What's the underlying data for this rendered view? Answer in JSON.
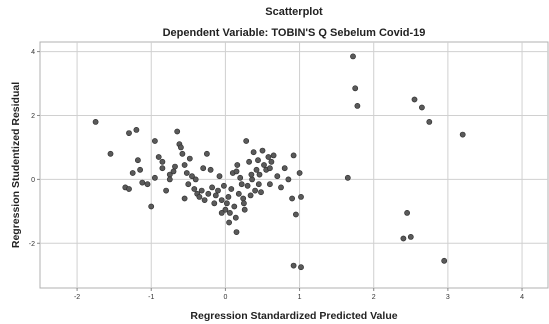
{
  "chart_data": {
    "type": "scatter",
    "title": "Scatterplot",
    "subtitle": "Dependent Variable: TOBIN'S Q Sebelum Covid-19",
    "xlabel": "Regression Standardized Predicted Value",
    "ylabel": "Regression Studentized Residual",
    "xlim": [
      -2.5,
      4.35
    ],
    "ylim": [
      -3.4,
      4.3
    ],
    "xticks": [
      -2,
      -1,
      0,
      1,
      2,
      3,
      4
    ],
    "yticks": [
      -2,
      0,
      2,
      4
    ],
    "grid": true,
    "point_color": "#5a5a5a",
    "points": [
      [
        -1.75,
        1.8
      ],
      [
        -1.55,
        0.8
      ],
      [
        -1.35,
        -0.25
      ],
      [
        -1.3,
        1.45
      ],
      [
        -1.25,
        0.2
      ],
      [
        -1.2,
        1.55
      ],
      [
        -1.18,
        0.6
      ],
      [
        -1.15,
        0.3
      ],
      [
        -1.12,
        -0.1
      ],
      [
        -1.05,
        -0.15
      ],
      [
        -0.95,
        1.2
      ],
      [
        -0.95,
        0.05
      ],
      [
        -0.9,
        0.7
      ],
      [
        -0.85,
        0.55
      ],
      [
        -0.8,
        -0.35
      ],
      [
        -0.75,
        0.15
      ],
      [
        -0.7,
        0.25
      ],
      [
        -0.68,
        0.4
      ],
      [
        -0.65,
        1.5
      ],
      [
        -0.62,
        1.1
      ],
      [
        -0.6,
        1.0
      ],
      [
        -0.58,
        0.8
      ],
      [
        -0.55,
        0.45
      ],
      [
        -0.52,
        0.2
      ],
      [
        -0.5,
        -0.15
      ],
      [
        -0.48,
        0.65
      ],
      [
        -0.45,
        0.1
      ],
      [
        -0.42,
        -0.3
      ],
      [
        -0.4,
        0.0
      ],
      [
        -0.38,
        -0.45
      ],
      [
        -0.35,
        -0.55
      ],
      [
        -0.32,
        -0.35
      ],
      [
        -0.3,
        0.35
      ],
      [
        -0.28,
        -0.65
      ],
      [
        -0.25,
        0.8
      ],
      [
        -0.23,
        -0.45
      ],
      [
        -0.2,
        0.3
      ],
      [
        -0.18,
        -0.25
      ],
      [
        -0.15,
        -0.75
      ],
      [
        -0.13,
        -0.5
      ],
      [
        -0.1,
        -0.35
      ],
      [
        -0.08,
        0.1
      ],
      [
        -0.05,
        -0.65
      ],
      [
        -0.02,
        -0.2
      ],
      [
        0.0,
        -0.95
      ],
      [
        0.02,
        -0.75
      ],
      [
        0.04,
        -0.55
      ],
      [
        0.06,
        -1.05
      ],
      [
        0.08,
        -0.3
      ],
      [
        0.1,
        0.2
      ],
      [
        0.12,
        -0.85
      ],
      [
        0.14,
        -1.2
      ],
      [
        0.16,
        0.45
      ],
      [
        0.18,
        -0.45
      ],
      [
        0.2,
        0.05
      ],
      [
        0.22,
        -0.15
      ],
      [
        0.24,
        -0.6
      ],
      [
        0.26,
        -0.95
      ],
      [
        0.28,
        1.2
      ],
      [
        0.3,
        -0.2
      ],
      [
        0.32,
        0.55
      ],
      [
        0.34,
        -0.5
      ],
      [
        0.36,
        0.0
      ],
      [
        0.38,
        0.85
      ],
      [
        0.4,
        -0.35
      ],
      [
        0.42,
        0.3
      ],
      [
        0.44,
        0.6
      ],
      [
        0.46,
        0.15
      ],
      [
        0.48,
        -0.4
      ],
      [
        0.5,
        0.9
      ],
      [
        0.52,
        0.45
      ],
      [
        0.55,
        0.3
      ],
      [
        0.58,
        0.7
      ],
      [
        0.6,
        -0.15
      ],
      [
        0.62,
        0.55
      ],
      [
        0.65,
        0.75
      ],
      [
        0.7,
        0.1
      ],
      [
        0.75,
        -0.25
      ],
      [
        0.8,
        0.35
      ],
      [
        0.85,
        0.0
      ],
      [
        0.9,
        -0.6
      ],
      [
        0.92,
        0.75
      ],
      [
        0.95,
        -1.1
      ],
      [
        1.0,
        0.2
      ],
      [
        1.02,
        -0.55
      ],
      [
        0.92,
        -2.7
      ],
      [
        1.02,
        -2.75
      ],
      [
        0.15,
        -1.65
      ],
      [
        0.05,
        -1.35
      ],
      [
        -0.05,
        -1.05
      ],
      [
        -1.0,
        -0.85
      ],
      [
        -1.3,
        -0.3
      ],
      [
        -0.85,
        0.35
      ],
      [
        -0.75,
        0.0
      ],
      [
        -0.55,
        -0.6
      ],
      [
        0.25,
        -0.75
      ],
      [
        0.15,
        0.25
      ],
      [
        0.35,
        0.15
      ],
      [
        0.45,
        -0.15
      ],
      [
        0.6,
        0.35
      ],
      [
        1.65,
        0.05
      ],
      [
        1.72,
        3.85
      ],
      [
        1.75,
        2.85
      ],
      [
        1.78,
        2.3
      ],
      [
        2.4,
        -1.85
      ],
      [
        2.45,
        -1.05
      ],
      [
        2.5,
        -1.8
      ],
      [
        2.55,
        2.5
      ],
      [
        2.65,
        2.25
      ],
      [
        2.75,
        1.8
      ],
      [
        2.95,
        -2.55
      ],
      [
        3.2,
        1.4
      ]
    ]
  }
}
